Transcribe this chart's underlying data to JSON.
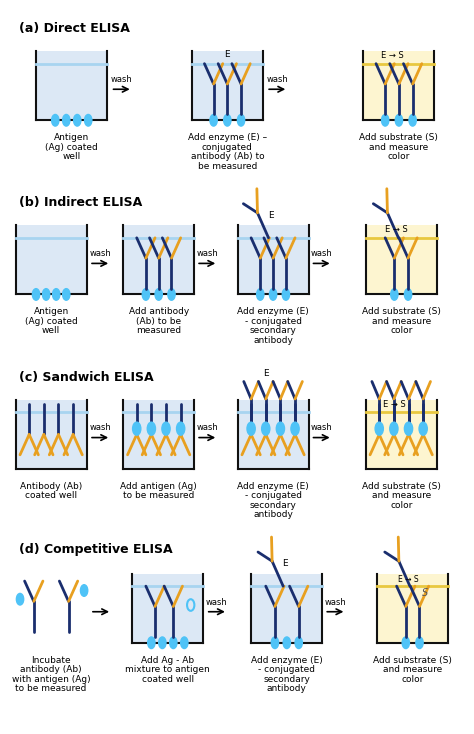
{
  "bg_color": "#ffffff",
  "well_fill_blue": "#dce8f5",
  "well_fill_yellow": "#fdf5d0",
  "well_border": "#111111",
  "water_line_blue": "#a8d4f0",
  "water_line_yellow": "#e8c840",
  "navy": "#1a2e6e",
  "gold": "#e8a020",
  "cyan": "#4fc3f7",
  "section_labels": [
    "(a) Direct ELISA",
    "(b) Indirect ELISA",
    "(c) Sandwich ELISA",
    "(d) Competitive ELISA"
  ],
  "label_fontsize": 9,
  "caption_fontsize": 6.5
}
